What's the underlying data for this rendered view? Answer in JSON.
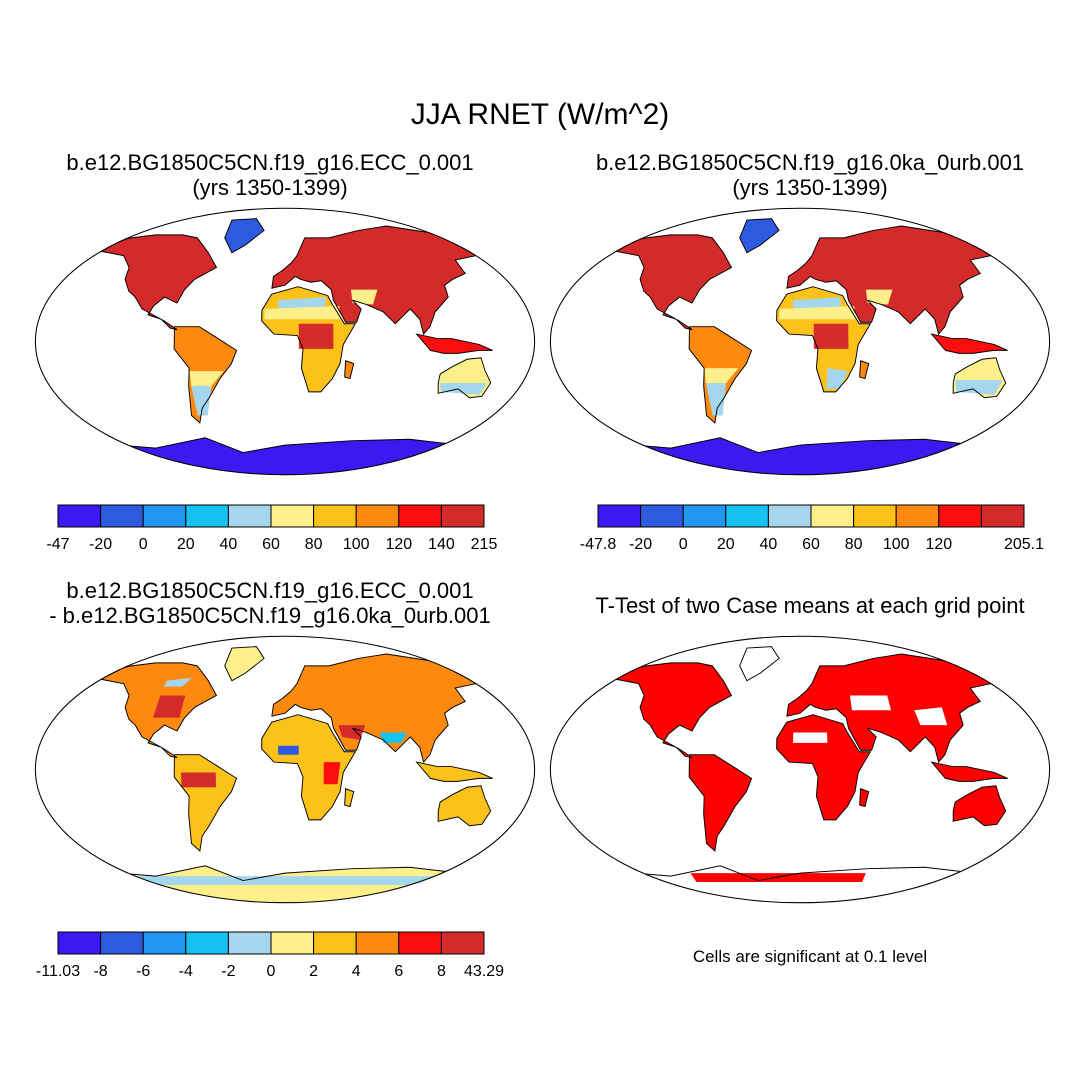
{
  "title": "JJA RNET (W/m^2)",
  "panels": [
    {
      "id": "p1",
      "title_line1": "b.e12.BG1850C5CN.f19_g16.ECC_0.001",
      "title_line2": "(yrs 1350-1399)",
      "colorbar": {
        "colors": [
          "#3a1af0",
          "#2e5ae0",
          "#2196f0",
          "#16c2f2",
          "#a4d6ee",
          "#fdf08a",
          "#fdc21a",
          "#fd8a0e",
          "#fd0e0e",
          "#d42a2a"
        ],
        "labels": [
          "-47",
          "-20",
          "0",
          "20",
          "40",
          "60",
          "80",
          "100",
          "120",
          "140",
          "215"
        ]
      }
    },
    {
      "id": "p2",
      "title_line1": "b.e12.BG1850C5CN.f19_g16.0ka_0urb.001",
      "title_line2": "(yrs 1350-1399)",
      "colorbar": {
        "colors": [
          "#3a1af0",
          "#2e5ae0",
          "#2196f0",
          "#16c2f2",
          "#a4d6ee",
          "#fdf08a",
          "#fdc21a",
          "#fd8a0e",
          "#fd0e0e",
          "#d42a2a"
        ],
        "labels": [
          "-47.8",
          "-20",
          "0",
          "20",
          "40",
          "60",
          "80",
          "100",
          "120",
          "",
          "205.1"
        ]
      }
    },
    {
      "id": "p3",
      "title_line1": "b.e12.BG1850C5CN.f19_g16.ECC_0.001",
      "title_line2": "- b.e12.BG1850C5CN.f19_g16.0ka_0urb.001",
      "colorbar": {
        "colors": [
          "#3a1af0",
          "#2e5ae0",
          "#2196f0",
          "#16c2f2",
          "#a4d6ee",
          "#fdf08a",
          "#fdc21a",
          "#fd8a0e",
          "#fd0e0e",
          "#d42a2a"
        ],
        "labels": [
          "-11.03",
          "-8",
          "-6",
          "-4",
          "-2",
          "0",
          "2",
          "4",
          "6",
          "8",
          "43.29"
        ]
      }
    },
    {
      "id": "p4",
      "title_line1": "T-Test of two Case means at each grid point",
      "note": "Cells are significant at 0.1 level",
      "significant_color": "#ff0000"
    }
  ]
}
